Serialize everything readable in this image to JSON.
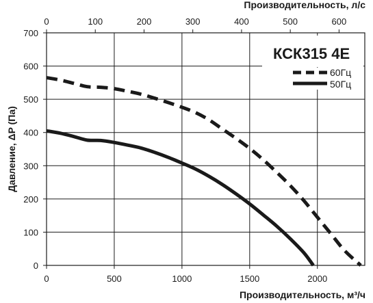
{
  "chart_data": {
    "type": "line",
    "title": "КСК315 4Е",
    "xlabel": "Производительность, м³/ч",
    "x2label": "Производительность, л/с",
    "ylabel": "Давление, ΔP (Па)",
    "xlim": [
      0,
      2350
    ],
    "x2lim": [
      0,
      652.8
    ],
    "ylim": [
      0,
      700
    ],
    "x_ticks": [
      0,
      500,
      1000,
      1500,
      2000
    ],
    "x2_ticks": [
      0,
      100,
      200,
      300,
      400,
      500,
      600
    ],
    "y_ticks": [
      0,
      100,
      200,
      300,
      400,
      500,
      600,
      700
    ],
    "grid": true,
    "legend_position": "top-right",
    "series": [
      {
        "name": "60Гц",
        "style": "dashed",
        "color": "#1a1a1a",
        "x": [
          0,
          100,
          200,
          300,
          400,
          500,
          600,
          700,
          800,
          900,
          1000,
          1100,
          1200,
          1300,
          1400,
          1500,
          1600,
          1700,
          1800,
          1900,
          2000,
          2100,
          2200,
          2320
        ],
        "y": [
          565,
          558,
          548,
          538,
          536,
          532,
          524,
          515,
          503,
          490,
          476,
          460,
          438,
          410,
          382,
          352,
          318,
          280,
          240,
          195,
          145,
          95,
          45,
          0
        ]
      },
      {
        "name": "50Гц",
        "style": "solid",
        "color": "#1a1a1a",
        "x": [
          0,
          100,
          200,
          300,
          400,
          500,
          600,
          700,
          800,
          900,
          1000,
          1100,
          1200,
          1300,
          1400,
          1500,
          1600,
          1700,
          1800,
          1900,
          1970
        ],
        "y": [
          405,
          398,
          388,
          377,
          376,
          370,
          362,
          353,
          340,
          325,
          308,
          290,
          268,
          243,
          215,
          185,
          152,
          118,
          80,
          38,
          0
        ]
      }
    ]
  }
}
